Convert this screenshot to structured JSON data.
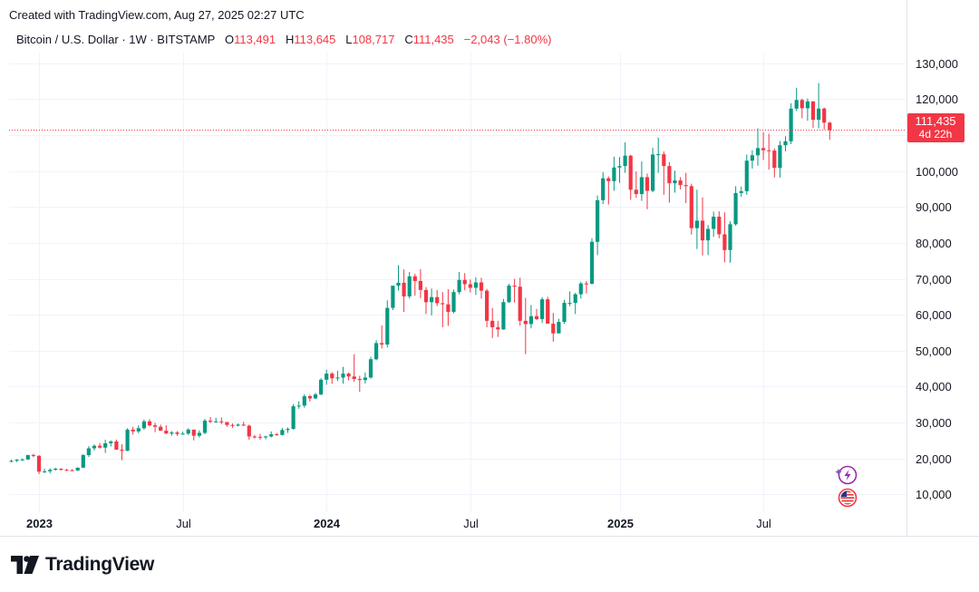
{
  "header": {
    "created_text": "Created with TradingView.com, Aug 27, 2025 02:27 UTC"
  },
  "legend": {
    "symbol": "Bitcoin / U.S. Dollar · 1W · BITSTAMP",
    "open_label": "O",
    "open": "113,491",
    "high_label": "H",
    "high": "113,645",
    "low_label": "L",
    "low": "108,717",
    "close_label": "C",
    "close": "111,435",
    "change": "−2,043 (−1.80%)"
  },
  "price_badge": {
    "price": "111,435",
    "countdown": "4d 22h"
  },
  "footer": {
    "brand": "TradingView"
  },
  "icons": [
    "lightning-icon",
    "us-flag-icon",
    "tradingview-logo-icon"
  ],
  "colors": {
    "up": "#089981",
    "down": "#f23645",
    "grid": "#f0f3fa",
    "price_line": "#f23645"
  },
  "chart_data": {
    "type": "candlestick",
    "title": "Bitcoin / U.S. Dollar · 1W · BITSTAMP",
    "y_axis": {
      "min": 5000,
      "max": 133000,
      "ticks": [
        10000,
        20000,
        30000,
        40000,
        50000,
        60000,
        70000,
        80000,
        90000,
        100000,
        110000,
        120000,
        130000
      ],
      "tick_labels": [
        "10,000",
        "20,000",
        "30,000",
        "40,000",
        "50,000",
        "60,000",
        "70,000",
        "80,000",
        "90,000",
        "100,000",
        "110,000",
        "120,000",
        "130,000"
      ]
    },
    "x_axis": {
      "ticks": [
        {
          "label": "2023",
          "bold": true,
          "week": 5
        },
        {
          "label": "Jul",
          "bold": false,
          "week": 31
        },
        {
          "label": "2024",
          "bold": true,
          "week": 57
        },
        {
          "label": "Jul",
          "bold": false,
          "week": 83
        },
        {
          "label": "2025",
          "bold": true,
          "week": 110
        },
        {
          "label": "Jul",
          "bold": false,
          "week": 136
        }
      ]
    },
    "grid": true,
    "last_price": 111435,
    "candles": [
      [
        19200,
        19600,
        18900,
        19300
      ],
      [
        19300,
        19800,
        19000,
        19600
      ],
      [
        19600,
        20000,
        19300,
        19700
      ],
      [
        19700,
        21000,
        19500,
        20900
      ],
      [
        20900,
        21300,
        20300,
        20700
      ],
      [
        20700,
        20900,
        15600,
        16300
      ],
      [
        16300,
        17100,
        15900,
        16400
      ],
      [
        16400,
        17200,
        15800,
        16800
      ],
      [
        16800,
        17400,
        16600,
        17100
      ],
      [
        17100,
        17200,
        16600,
        16800
      ],
      [
        16800,
        17100,
        16500,
        16700
      ],
      [
        16700,
        17000,
        16400,
        16600
      ],
      [
        16600,
        17500,
        16500,
        17400
      ],
      [
        17400,
        21200,
        17300,
        20900
      ],
      [
        20900,
        23400,
        20400,
        22800
      ],
      [
        22800,
        23900,
        22200,
        23500
      ],
      [
        23500,
        24300,
        22700,
        23000
      ],
      [
        23000,
        25200,
        21500,
        24200
      ],
      [
        24200,
        25000,
        23300,
        24700
      ],
      [
        24700,
        25200,
        22700,
        22400
      ],
      [
        22400,
        23900,
        19500,
        22100
      ],
      [
        22100,
        28400,
        22000,
        28000
      ],
      [
        28000,
        28800,
        26600,
        27500
      ],
      [
        27500,
        29200,
        27000,
        28400
      ],
      [
        28400,
        30800,
        28000,
        30300
      ],
      [
        30300,
        30900,
        28900,
        29200
      ],
      [
        29200,
        29900,
        27300,
        28800
      ],
      [
        28800,
        29400,
        27800,
        27700
      ],
      [
        27700,
        29200,
        26800,
        26900
      ],
      [
        26900,
        27600,
        26300,
        27200
      ],
      [
        27200,
        27600,
        26300,
        26800
      ],
      [
        26800,
        27400,
        26600,
        26900
      ],
      [
        26900,
        28400,
        26500,
        28000
      ],
      [
        28000,
        27800,
        25000,
        26300
      ],
      [
        26300,
        27800,
        25800,
        27100
      ],
      [
        27100,
        31000,
        26700,
        30500
      ],
      [
        30500,
        31500,
        29800,
        30200
      ],
      [
        30200,
        31300,
        29900,
        30300
      ],
      [
        30300,
        31400,
        29500,
        30100
      ],
      [
        30100,
        30200,
        28800,
        29300
      ],
      [
        29300,
        29700,
        28500,
        29100
      ],
      [
        29100,
        29700,
        28900,
        29400
      ],
      [
        29400,
        30200,
        29100,
        29100
      ],
      [
        29100,
        29400,
        25200,
        26100
      ],
      [
        26100,
        26500,
        25500,
        26000
      ],
      [
        26000,
        26800,
        25200,
        25900
      ],
      [
        25900,
        26300,
        25300,
        26100
      ],
      [
        26100,
        27500,
        25800,
        26700
      ],
      [
        26700,
        27100,
        26300,
        26500
      ],
      [
        26500,
        28500,
        26400,
        27900
      ],
      [
        27900,
        28600,
        27100,
        28200
      ],
      [
        28200,
        35100,
        28000,
        34500
      ],
      [
        34500,
        35900,
        33800,
        34700
      ],
      [
        34700,
        37900,
        34100,
        37300
      ],
      [
        37300,
        37700,
        35800,
        36700
      ],
      [
        36700,
        38200,
        36500,
        37800
      ],
      [
        37800,
        42300,
        37600,
        41900
      ],
      [
        41900,
        44700,
        40500,
        43600
      ],
      [
        43600,
        44000,
        40800,
        42300
      ],
      [
        42300,
        44400,
        41500,
        42500
      ],
      [
        42500,
        45500,
        40800,
        43600
      ],
      [
        43600,
        43900,
        41700,
        42800
      ],
      [
        42800,
        49000,
        41300,
        42100
      ],
      [
        42100,
        43000,
        38500,
        41800
      ],
      [
        41800,
        43900,
        40800,
        42500
      ],
      [
        42500,
        48300,
        42200,
        47600
      ],
      [
        47600,
        52900,
        47300,
        52100
      ],
      [
        52100,
        57000,
        50600,
        51700
      ],
      [
        51700,
        64000,
        50900,
        61900
      ],
      [
        61900,
        68000,
        61300,
        68100
      ],
      [
        68100,
        73800,
        66700,
        68900
      ],
      [
        68900,
        72600,
        60800,
        65100
      ],
      [
        65100,
        71900,
        64500,
        70700
      ],
      [
        70700,
        71400,
        65300,
        69400
      ],
      [
        69400,
        72700,
        64600,
        66900
      ],
      [
        66900,
        67700,
        60200,
        63500
      ],
      [
        63500,
        67300,
        59800,
        64900
      ],
      [
        64900,
        66900,
        62400,
        63200
      ],
      [
        63200,
        66300,
        56500,
        62900
      ],
      [
        62900,
        67100,
        56900,
        60800
      ],
      [
        60800,
        67000,
        60400,
        66300
      ],
      [
        66300,
        71900,
        65700,
        69700
      ],
      [
        69700,
        71600,
        66800,
        68500
      ],
      [
        68500,
        69800,
        66200,
        67500
      ],
      [
        67500,
        70400,
        65500,
        69000
      ],
      [
        69000,
        70300,
        64500,
        66700
      ],
      [
        66700,
        67200,
        56500,
        58300
      ],
      [
        58300,
        61900,
        53500,
        56500
      ],
      [
        56500,
        58300,
        53800,
        55900
      ],
      [
        55900,
        64400,
        55800,
        63500
      ],
      [
        63500,
        68600,
        63300,
        68100
      ],
      [
        68100,
        70000,
        63400,
        67800
      ],
      [
        67800,
        70300,
        57000,
        58300
      ],
      [
        58300,
        64700,
        49000,
        57400
      ],
      [
        57400,
        62700,
        56200,
        59600
      ],
      [
        59600,
        61600,
        58500,
        58800
      ],
      [
        58800,
        64900,
        57700,
        64300
      ],
      [
        64300,
        65000,
        57900,
        57500
      ],
      [
        57500,
        60500,
        52500,
        54800
      ],
      [
        54800,
        58900,
        55000,
        58000
      ],
      [
        58000,
        64100,
        57500,
        63300
      ],
      [
        63300,
        66500,
        62400,
        63300
      ],
      [
        63300,
        66100,
        60200,
        65700
      ],
      [
        65700,
        69200,
        64500,
        68700
      ],
      [
        68700,
        69400,
        65900,
        68600
      ],
      [
        68600,
        81300,
        68500,
        80300
      ],
      [
        80300,
        93200,
        76600,
        91900
      ],
      [
        91900,
        99700,
        90800,
        98000
      ],
      [
        98000,
        98500,
        90700,
        97200
      ],
      [
        97200,
        104000,
        94500,
        101000
      ],
      [
        101000,
        103900,
        96700,
        101400
      ],
      [
        101400,
        108000,
        99500,
        104300
      ],
      [
        104300,
        104500,
        92000,
        94800
      ],
      [
        94800,
        99900,
        92600,
        93600
      ],
      [
        93600,
        102700,
        91700,
        98300
      ],
      [
        98300,
        99300,
        89400,
        94500
      ],
      [
        94500,
        106500,
        94100,
        104600
      ],
      [
        104600,
        109300,
        99500,
        104700
      ],
      [
        104700,
        105500,
        93400,
        101400
      ],
      [
        101400,
        102500,
        91200,
        96600
      ],
      [
        96600,
        100100,
        94000,
        97400
      ],
      [
        97400,
        98300,
        94900,
        96100
      ],
      [
        96100,
        99500,
        91100,
        95800
      ],
      [
        95800,
        96500,
        82300,
        84100
      ],
      [
        84100,
        94800,
        78300,
        86200
      ],
      [
        86200,
        92700,
        76500,
        80700
      ],
      [
        80700,
        85000,
        76600,
        83900
      ],
      [
        83900,
        88700,
        81700,
        87300
      ],
      [
        87300,
        88800,
        81300,
        82400
      ],
      [
        82400,
        88500,
        74600,
        78000
      ],
      [
        78000,
        86000,
        74500,
        85200
      ],
      [
        85200,
        95800,
        84800,
        93900
      ],
      [
        93900,
        95700,
        92800,
        94400
      ],
      [
        94400,
        104600,
        93400,
        102900
      ],
      [
        102900,
        105800,
        100700,
        104400
      ],
      [
        104400,
        111900,
        101500,
        106400
      ],
      [
        106400,
        110800,
        103100,
        105800
      ],
      [
        105800,
        110400,
        100400,
        105700
      ],
      [
        105700,
        106300,
        98200,
        100900
      ],
      [
        100900,
        108400,
        98200,
        107200
      ],
      [
        107200,
        109700,
        105500,
        108300
      ],
      [
        108300,
        118900,
        107500,
        117400
      ],
      [
        117400,
        123200,
        116700,
        119800
      ],
      [
        119800,
        120200,
        114700,
        117500
      ],
      [
        117500,
        120200,
        114000,
        119400
      ],
      [
        119400,
        119500,
        112000,
        114300
      ],
      [
        114300,
        124500,
        111900,
        117400
      ],
      [
        117400,
        117700,
        111600,
        113500
      ],
      [
        113500,
        113700,
        108700,
        111400
      ]
    ]
  }
}
